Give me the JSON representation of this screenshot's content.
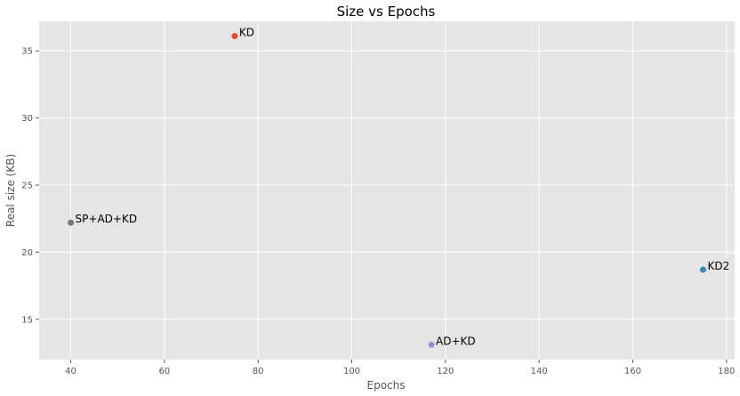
{
  "chart_data": {
    "type": "scatter",
    "title": "Size vs Epochs",
    "xlabel": "Epochs",
    "ylabel": "Real size (KB)",
    "xlim": [
      33.25,
      181.75
    ],
    "ylim": [
      12.0,
      37.2
    ],
    "xticks": [
      40,
      60,
      80,
      100,
      120,
      140,
      160,
      180
    ],
    "yticks": [
      15,
      20,
      25,
      30,
      35
    ],
    "grid": true,
    "background_color": "#e5e5e5",
    "points": [
      {
        "label": "KD",
        "x": 75,
        "y": 36.1,
        "color": "#e24a33"
      },
      {
        "label": "SP+AD+KD",
        "x": 40,
        "y": 22.2,
        "color": "#777777"
      },
      {
        "label": "KD2",
        "x": 175,
        "y": 18.7,
        "color": "#348abd"
      },
      {
        "label": "AD+KD",
        "x": 117,
        "y": 13.1,
        "color": "#988ed5"
      }
    ]
  }
}
